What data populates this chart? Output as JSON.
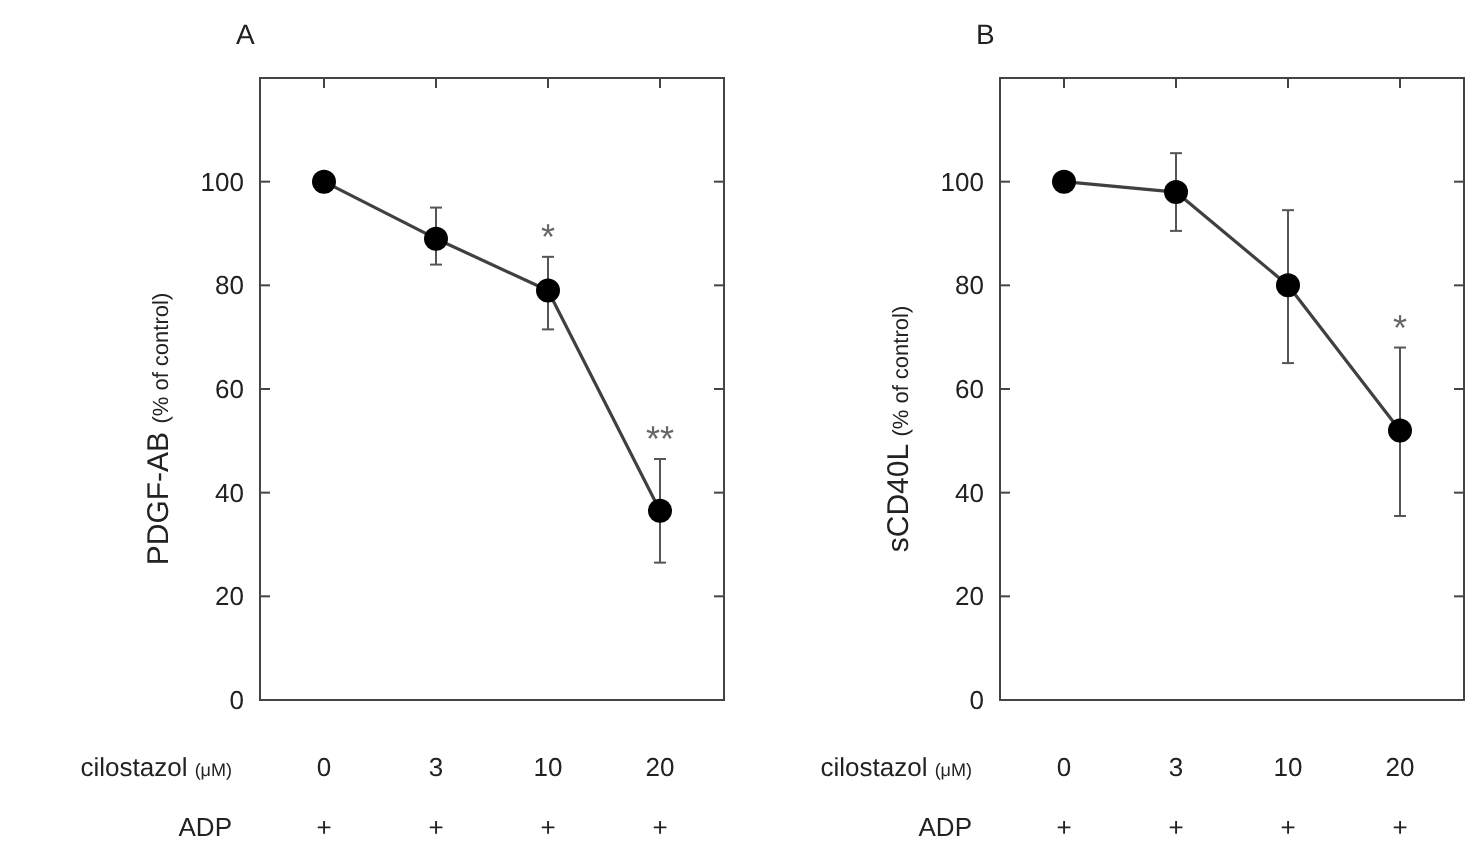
{
  "chart_data": [
    {
      "type": "line",
      "title": "A",
      "xlabel": "cilostazol (μM)",
      "ylabel": "PDGF-AB (% of control)",
      "categories": [
        "0",
        "3",
        "10",
        "20"
      ],
      "series": [
        {
          "color": "#000000",
          "values": [
            100,
            89,
            79,
            36.5
          ],
          "errors": [
            null,
            [
              84,
              95
            ],
            [
              71.5,
              85.5
            ],
            [
              26.5,
              46.5
            ]
          ],
          "value_labels": [
            null,
            null,
            "*",
            "**"
          ]
        }
      ],
      "ylim": [
        0,
        120
      ],
      "yticks": [
        0,
        20,
        40,
        60,
        80,
        100
      ],
      "grid": false,
      "marker": "circle",
      "line_style": "solid",
      "annotations": [
        "ADP",
        "+",
        "+",
        "+",
        "+"
      ]
    },
    {
      "type": "line",
      "title": "B",
      "xlabel": "cilostazol (μM)",
      "ylabel": "sCD40L (% of control)",
      "categories": [
        "0",
        "3",
        "10",
        "20"
      ],
      "series": [
        {
          "color": "#000000",
          "values": [
            100,
            98,
            80,
            52
          ],
          "errors": [
            null,
            [
              90.5,
              105.5
            ],
            [
              65,
              94.5
            ],
            [
              35.5,
              68
            ]
          ],
          "value_labels": [
            null,
            null,
            null,
            "*"
          ]
        }
      ],
      "ylim": [
        0,
        120
      ],
      "yticks": [
        0,
        20,
        40,
        60,
        80,
        100
      ],
      "grid": false,
      "marker": "circle",
      "line_style": "solid",
      "annotations": [
        "ADP",
        "+",
        "+",
        "+",
        "+"
      ]
    }
  ]
}
